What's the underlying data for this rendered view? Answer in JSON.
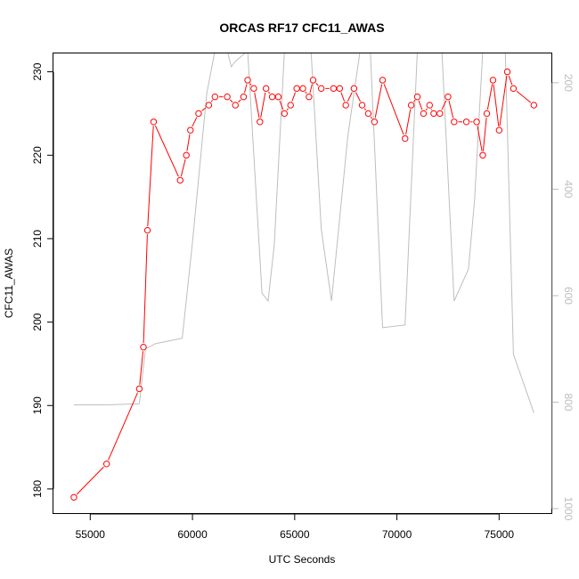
{
  "chart_data": {
    "type": "line",
    "title": "ORCAS RF17 CFC11_AWAS",
    "xlabel": "UTC Seconds",
    "ylabel": "CFC11_AWAS",
    "xlim": [
      53200,
      77600
    ],
    "ylim": [
      177,
      232.2
    ],
    "y2lim": [
      1010,
      145
    ],
    "y2_reversed": true,
    "x_ticks": [
      55000,
      60000,
      65000,
      70000,
      75000
    ],
    "y_ticks": [
      180,
      190,
      200,
      210,
      220,
      230
    ],
    "y2_ticks": [
      200,
      400,
      600,
      800,
      1000
    ],
    "colors": {
      "series": "#ff0000",
      "secondary": "#bebebe",
      "axes": "#000000",
      "right_axis": "#bdbdbd"
    },
    "series": [
      {
        "axis": "left",
        "x": [
          54200,
          55800,
          57400,
          57600,
          57800,
          58100,
          59400,
          59700,
          59900,
          60300,
          60800,
          61100,
          61700,
          62100,
          62500,
          62700,
          63000,
          63300,
          63600,
          63900,
          64200,
          64500,
          64800,
          65100,
          65400,
          65700,
          65900,
          66300,
          66900,
          67200,
          67500,
          67900,
          68300,
          68600,
          68900,
          69300,
          70400,
          70700,
          71000,
          71300,
          71600,
          71800,
          72100,
          72500,
          72800,
          73400,
          73900,
          74200,
          74400,
          74700,
          75000,
          75400,
          75700,
          76700
        ],
        "y": [
          179,
          183,
          192,
          197,
          211,
          224,
          217,
          220,
          223,
          225,
          226,
          227,
          227,
          226,
          227,
          229,
          228,
          224,
          228,
          227,
          227,
          225,
          226,
          228,
          228,
          227,
          229,
          228,
          228,
          228,
          226,
          228,
          226,
          225,
          224,
          229,
          222,
          226,
          227,
          225,
          226,
          225,
          225,
          227,
          224,
          224,
          224,
          220,
          225,
          229,
          223,
          230,
          228,
          226
        ]
      },
      {
        "axis": "right",
        "x": [
          54200,
          55800,
          57400,
          57700,
          58200,
          59500,
          60000,
          60700,
          61100,
          61400,
          61700,
          61900,
          62100,
          62700,
          63400,
          63700,
          64000,
          64500,
          65100,
          65600,
          65800,
          66300,
          66800,
          67600,
          68200,
          68500,
          68700,
          69300,
          70400,
          71000,
          71800,
          72200,
          72800,
          73500,
          73800,
          74200,
          74300,
          74800,
          75100,
          75300,
          75700,
          76700
        ],
        "y": [
          805,
          805,
          803,
          700,
          690,
          680,
          500,
          220,
          140,
          140,
          140,
          170,
          160,
          140,
          595,
          610,
          505,
          140,
          140,
          140,
          140,
          475,
          610,
          300,
          140,
          140,
          140,
          660,
          655,
          140,
          140,
          140,
          610,
          550,
          420,
          140,
          140,
          140,
          140,
          140,
          710,
          820
        ]
      }
    ]
  }
}
